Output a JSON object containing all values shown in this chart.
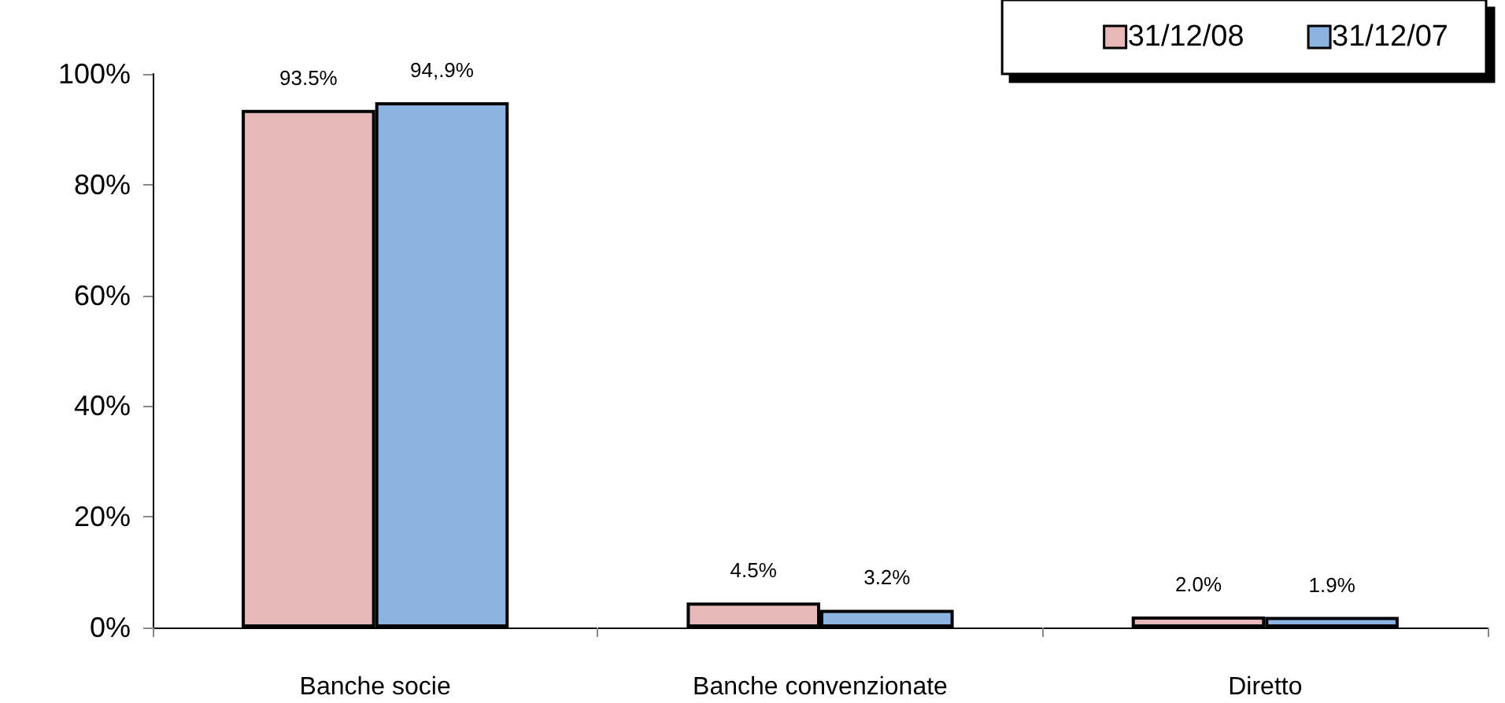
{
  "chart_data": {
    "type": "bar",
    "categories": [
      "Banche socie",
      "Banche convenzionate",
      "Diretto"
    ],
    "series": [
      {
        "name": "31/12/08",
        "color": "#e6b8b7",
        "values": [
          93.5,
          4.5,
          2.0
        ],
        "value_labels": [
          "93.5%",
          "4.5%",
          "2.0%"
        ]
      },
      {
        "name": "31/12/07",
        "color": "#8db3e2",
        "values": [
          94.9,
          3.2,
          1.9
        ],
        "value_labels": [
          "94,.9%",
          "3.2%",
          "1.9%"
        ]
      }
    ],
    "ylim": [
      0,
      100
    ],
    "yticks": [
      {
        "value": 0,
        "label": "0%"
      },
      {
        "value": 20,
        "label": "20%"
      },
      {
        "value": 40,
        "label": "40%"
      },
      {
        "value": 60,
        "label": "60%"
      },
      {
        "value": 80,
        "label": "80%"
      },
      {
        "value": 100,
        "label": "100%"
      }
    ],
    "grid": false,
    "legend": "top right"
  }
}
